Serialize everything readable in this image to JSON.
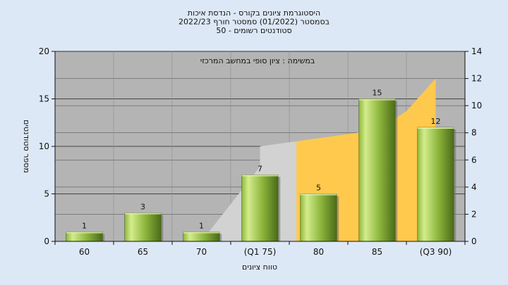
{
  "colors": {
    "background": "#dde8f6",
    "plot": "#b4b4b4",
    "area": "#ffc94d",
    "area_light": "#d2d2d2",
    "bar_light": "#d4ec8c",
    "bar_mid": "#8fb83e",
    "bar_dark": "#4a6b18"
  },
  "chart_data": {
    "type": "bar",
    "title_lines": [
      "היסטוגרמת ציונים בקורס - הנדסת איכות",
      "בסמסטר  (01/2022)  סמסטר חורף  2022/23",
      "סטודנטים רשומים - 50"
    ],
    "annotation": "במשימה : ציון סופי במחשב המרכזי",
    "ylabel": "מספר סטודנטים",
    "xlabel": "טווח ציונים",
    "categories": [
      "60",
      "65",
      "70",
      "(Q1 75)",
      "80",
      "85",
      "(Q3 90)"
    ],
    "values": [
      1,
      3,
      1,
      7,
      5,
      15,
      12
    ],
    "ylim": [
      0,
      20
    ],
    "y_ticks": [
      0,
      5,
      10,
      15,
      20
    ],
    "y2lim": [
      0,
      14
    ],
    "y2_ticks": [
      0,
      2,
      4,
      6,
      8,
      10,
      12,
      14
    ],
    "area_series": {
      "x": [
        2,
        3,
        3,
        4,
        5,
        5.5,
        6
      ],
      "y": [
        0,
        5.5,
        7,
        7.6,
        8.2,
        9.6,
        12
      ]
    },
    "grid": true
  }
}
